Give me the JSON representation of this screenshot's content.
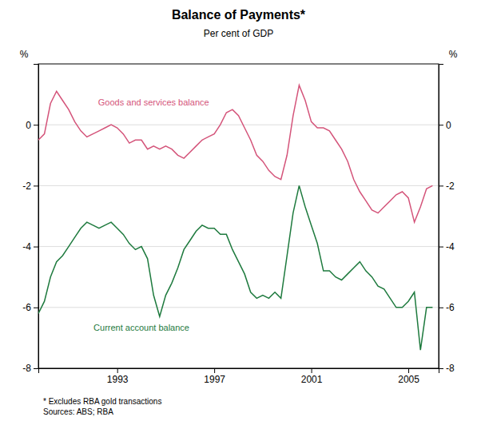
{
  "chart_data": {
    "type": "line",
    "title": "Balance of Payments*",
    "subtitle": "Per cent of GDP",
    "ylabel": "%",
    "y2label": "%",
    "footnotes": [
      "*  Excludes RBA gold transactions",
      "Sources: ABS; RBA"
    ],
    "x": [
      1989.75,
      1990.0,
      1990.25,
      1990.5,
      1990.75,
      1991.0,
      1991.25,
      1991.5,
      1991.75,
      1992.0,
      1992.25,
      1992.5,
      1992.75,
      1993.0,
      1993.25,
      1993.5,
      1993.75,
      1994.0,
      1994.25,
      1994.5,
      1994.75,
      1995.0,
      1995.25,
      1995.5,
      1995.75,
      1996.0,
      1996.25,
      1996.5,
      1996.75,
      1997.0,
      1997.25,
      1997.5,
      1997.75,
      1998.0,
      1998.25,
      1998.5,
      1998.75,
      1999.0,
      1999.25,
      1999.5,
      1999.75,
      2000.0,
      2000.25,
      2000.5,
      2000.75,
      2001.0,
      2001.25,
      2001.5,
      2001.75,
      2002.0,
      2002.25,
      2002.5,
      2002.75,
      2003.0,
      2003.25,
      2003.5,
      2003.75,
      2004.0,
      2004.25,
      2004.5,
      2004.75,
      2005.0,
      2005.25,
      2005.5,
      2005.75,
      2006.0
    ],
    "series": [
      {
        "color": "#d4547a",
        "values": [
          -0.5,
          -0.3,
          0.7,
          1.1,
          0.8,
          0.5,
          0.1,
          -0.2,
          -0.4,
          -0.3,
          -0.2,
          -0.1,
          0.0,
          -0.1,
          -0.3,
          -0.6,
          -0.5,
          -0.5,
          -0.8,
          -0.7,
          -0.8,
          -0.7,
          -0.8,
          -1.0,
          -1.1,
          -0.9,
          -0.7,
          -0.5,
          -0.4,
          -0.3,
          0.0,
          0.4,
          0.5,
          0.3,
          -0.1,
          -0.5,
          -1.0,
          -1.2,
          -1.5,
          -1.7,
          -1.8,
          -1.0,
          0.3,
          1.3,
          0.8,
          0.1,
          -0.1,
          -0.1,
          -0.2,
          -0.5,
          -0.8,
          -1.2,
          -1.8,
          -2.2,
          -2.5,
          -2.8,
          -2.9,
          -2.7,
          -2.5,
          -2.3,
          -2.2,
          -2.4,
          -3.2,
          -2.7,
          -2.1,
          -2.0
        ]
      },
      {
        "color": "#1e7a3e",
        "values": [
          -6.2,
          -5.8,
          -5.0,
          -4.5,
          -4.3,
          -4.0,
          -3.7,
          -3.4,
          -3.2,
          -3.3,
          -3.4,
          -3.3,
          -3.2,
          -3.4,
          -3.6,
          -3.9,
          -4.1,
          -4.0,
          -4.4,
          -5.6,
          -6.3,
          -5.6,
          -5.2,
          -4.7,
          -4.1,
          -3.8,
          -3.5,
          -3.3,
          -3.4,
          -3.4,
          -3.6,
          -3.6,
          -4.1,
          -4.5,
          -4.9,
          -5.5,
          -5.7,
          -5.6,
          -5.7,
          -5.5,
          -5.7,
          -4.3,
          -2.9,
          -2.0,
          -2.7,
          -3.3,
          -3.9,
          -4.8,
          -4.8,
          -5.0,
          -5.1,
          -4.9,
          -4.7,
          -4.5,
          -4.8,
          -5.0,
          -5.3,
          -5.4,
          -5.7,
          -6.0,
          -6.0,
          -5.8,
          -5.5,
          -7.4,
          -6.0,
          -6.0
        ]
      }
    ],
    "annotations": [
      {
        "text": "Goods and services balance",
        "x": 1994.5,
        "y": 0.7,
        "color": "#d4547a"
      },
      {
        "text": "Current account balance",
        "x": 1994.0,
        "y": -6.7,
        "color": "#1e7a3e"
      }
    ],
    "xlim": [
      1989.75,
      2006.25
    ],
    "xticks": [
      1993,
      1997,
      2001,
      2005
    ],
    "ylim": [
      -8,
      2
    ],
    "yticks": [
      -8,
      -6,
      -4,
      -2,
      0
    ],
    "y2lim": [
      -8,
      2
    ],
    "y2ticks": [
      -8,
      -6,
      -4,
      -2,
      0
    ],
    "grid": true
  }
}
